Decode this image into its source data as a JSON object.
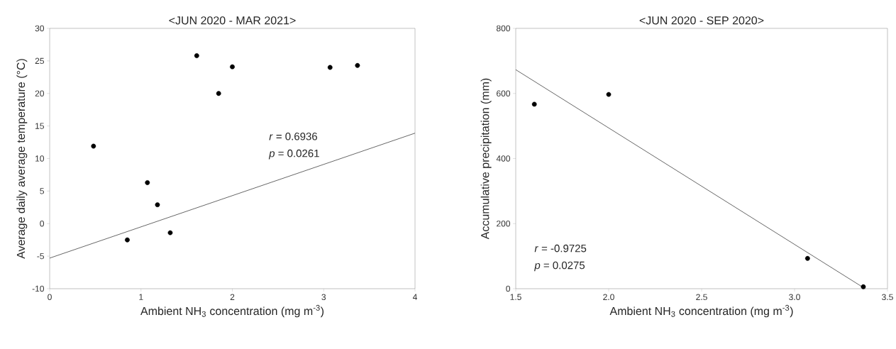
{
  "chart_data": [
    {
      "type": "scatter",
      "title": "<JUN 2020 - MAR 2021>",
      "xlabel": "Ambient NH$_{3}$ concentration (mg m$^{-3}$)",
      "ylabel": "Average daily average temperature (°C)",
      "xlim": [
        0,
        4
      ],
      "ylim": [
        -10,
        30
      ],
      "xticks": [
        0,
        1,
        2,
        3,
        4
      ],
      "yticks": [
        -10,
        -5,
        0,
        5,
        10,
        15,
        20,
        25,
        30
      ],
      "series": [
        {
          "color": "#000000",
          "x": [
            0.48,
            0.85,
            1.07,
            1.18,
            1.32,
            1.61,
            1.85,
            2.0,
            3.07,
            3.37
          ],
          "values": [
            11.9,
            -2.5,
            6.3,
            2.9,
            -1.4,
            25.8,
            20.0,
            24.1,
            24.0,
            24.3
          ]
        },
        {
          "type": "line",
          "color": "#404040",
          "x": [
            0,
            4
          ],
          "values": [
            -5.3,
            13.9
          ]
        }
      ],
      "annotations": [
        "*r* = 0.6936",
        "*p* = 0.0261"
      ]
    },
    {
      "type": "scatter",
      "title": "<JUN 2020 - SEP 2020>",
      "xlabel": "Ambient NH$_{3}$ concentration (mg m$^{-3}$)",
      "ylabel": "Accumulative precipitation (mm)",
      "xlim": [
        1.5,
        3.5
      ],
      "ylim": [
        0,
        800
      ],
      "xticks": [
        {
          "value": 1.5,
          "label": "1.5"
        },
        {
          "value": 2,
          "label": "2.0"
        },
        {
          "value": 2.5,
          "label": "2.5"
        },
        {
          "value": 3,
          "label": "3.0"
        },
        {
          "value": 3.5,
          "label": "3.5"
        }
      ],
      "yticks": [
        0,
        200,
        400,
        600,
        800
      ],
      "series": [
        {
          "color": "#000000",
          "x": [
            1.6,
            2.0,
            3.07,
            3.37
          ],
          "values": [
            567,
            597,
            93,
            6
          ]
        },
        {
          "type": "line",
          "color": "#404040",
          "x": [
            1.5,
            3.38
          ],
          "values": [
            673,
            0
          ]
        }
      ],
      "annotations": [
        "*r* = -0.9725",
        "*p* = 0.0275"
      ]
    }
  ]
}
